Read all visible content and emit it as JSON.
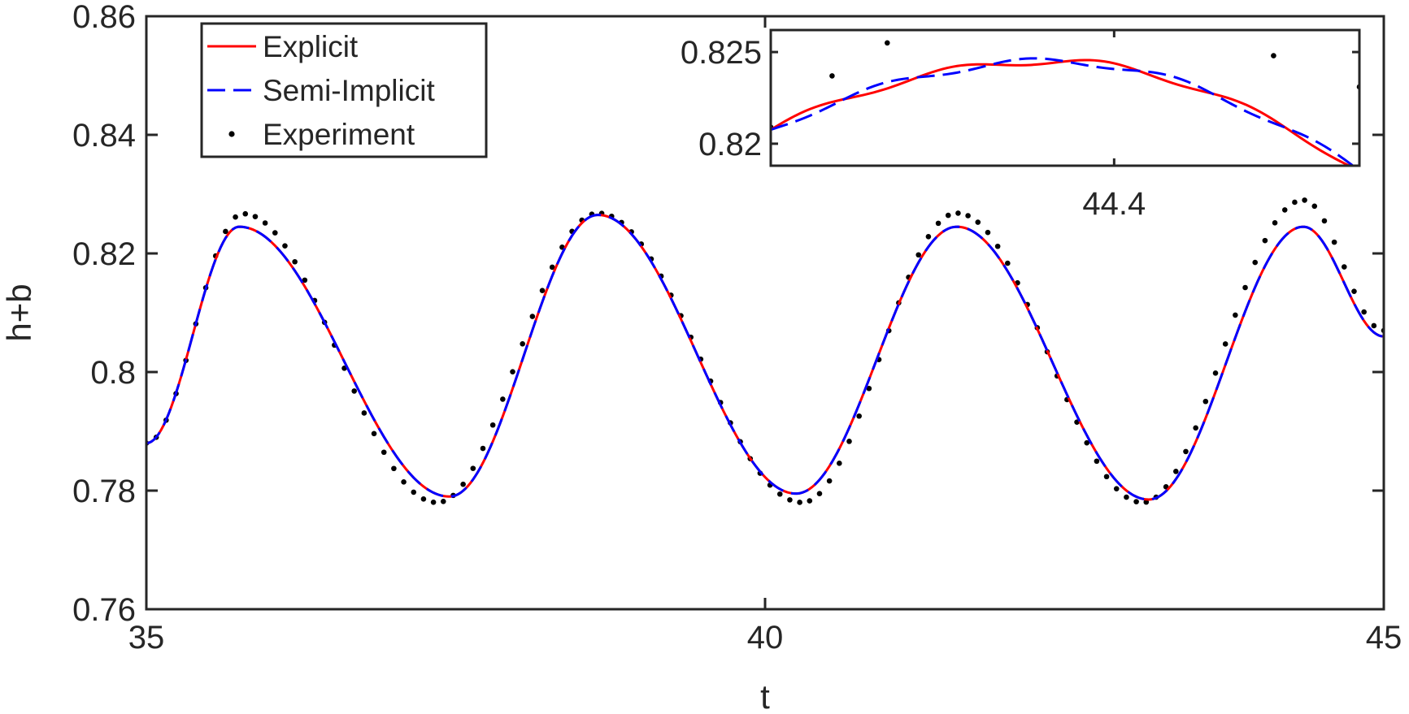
{
  "chart_data": {
    "type": "line",
    "xlabel": "t",
    "ylabel": "h+b",
    "xlim": [
      35,
      45
    ],
    "ylim": [
      0.76,
      0.86
    ],
    "xticks": [
      35,
      40,
      45
    ],
    "xtick_labels": [
      "35",
      "40",
      "45"
    ],
    "yticks": [
      0.76,
      0.78,
      0.8,
      0.82,
      0.84,
      0.86
    ],
    "ytick_labels": [
      "0.76",
      "0.78",
      "0.8",
      "0.82",
      "0.84",
      "0.86"
    ],
    "grid": false,
    "legend_position": "top-left",
    "series": [
      {
        "name": "Explicit",
        "style": "solid",
        "color": "#ff0000",
        "keypoints": [
          [
            35.0,
            0.788
          ],
          [
            35.75,
            0.8245
          ],
          [
            37.45,
            0.779
          ],
          [
            38.65,
            0.8265
          ],
          [
            40.25,
            0.7795
          ],
          [
            41.55,
            0.8245
          ],
          [
            43.1,
            0.7785
          ],
          [
            44.35,
            0.8245
          ],
          [
            45.0,
            0.806
          ]
        ]
      },
      {
        "name": "Semi-Implicit",
        "style": "dashed",
        "color": "#0000ff",
        "keypoints": [
          [
            35.0,
            0.788
          ],
          [
            35.75,
            0.8245
          ],
          [
            37.45,
            0.779
          ],
          [
            38.65,
            0.8265
          ],
          [
            40.25,
            0.7795
          ],
          [
            41.55,
            0.8245
          ],
          [
            43.1,
            0.7785
          ],
          [
            44.35,
            0.8245
          ],
          [
            45.0,
            0.806
          ]
        ]
      },
      {
        "name": "Experiment",
        "style": "dots",
        "color": "#000000",
        "keypoints": [
          [
            35.0,
            0.788
          ],
          [
            35.78,
            0.8267
          ],
          [
            37.35,
            0.778
          ],
          [
            38.65,
            0.8268
          ],
          [
            40.3,
            0.778
          ],
          [
            41.55,
            0.8268
          ],
          [
            43.05,
            0.778
          ],
          [
            44.35,
            0.829
          ],
          [
            45.0,
            0.807
          ]
        ]
      }
    ],
    "inset": {
      "xlim": [
        44.12,
        44.6
      ],
      "ylim": [
        0.8188,
        0.8262
      ],
      "xticks": [
        44.4
      ],
      "xtick_labels": [
        "44.4"
      ],
      "yticks": [
        0.82,
        0.825
      ],
      "ytick_labels": [
        "0.82",
        "0.825"
      ],
      "experiment_points": [
        [
          44.12,
          0.8209
        ],
        [
          44.17,
          0.8237
        ],
        [
          44.215,
          0.8255
        ],
        [
          44.53,
          0.8248
        ],
        [
          44.6,
          0.8231
        ]
      ]
    }
  }
}
